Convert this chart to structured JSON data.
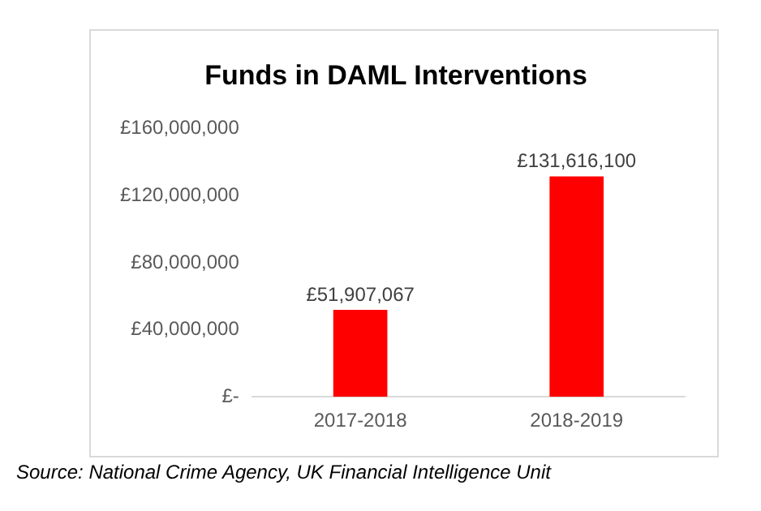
{
  "chart_data": {
    "type": "bar",
    "title": "Funds in DAML Interventions",
    "categories": [
      "2017-2018",
      "2018-2019"
    ],
    "values": [
      51907067,
      131616100
    ],
    "color": "#ff0000",
    "value_labels": [
      "£51,907,067",
      "£131,616,100"
    ],
    "ylim": [
      0,
      160000000
    ],
    "yticks": [
      {
        "value": 0,
        "label": "£-"
      },
      {
        "value": 40000000,
        "label": "£40,000,000"
      },
      {
        "value": 80000000,
        "label": "£80,000,000"
      },
      {
        "value": 120000000,
        "label": "£120,000,000"
      },
      {
        "value": 160000000,
        "label": "£160,000,000"
      }
    ],
    "grid": false,
    "legend": false,
    "annotations": [
      "Source: National Crime Agency, UK Financial Intelligence Unit"
    ]
  }
}
